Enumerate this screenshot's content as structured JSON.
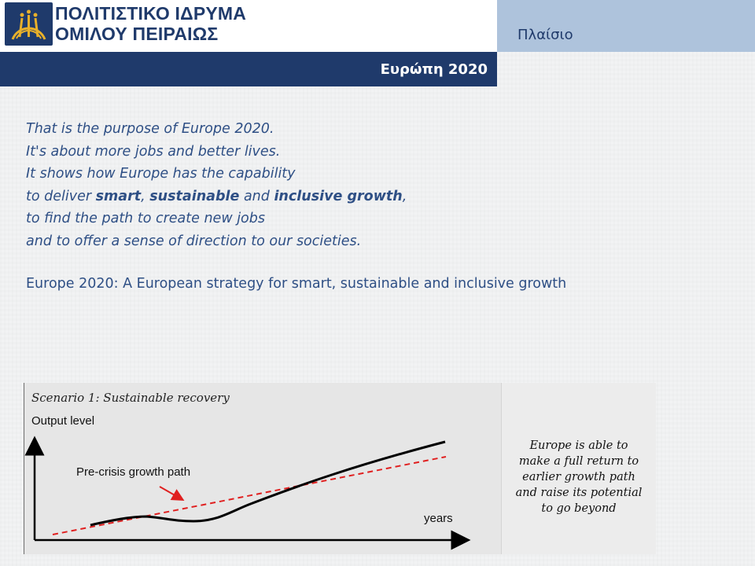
{
  "header": {
    "logo_line1": "ΠΟΛΙΤΙΣΤΙΚΟ ΙΔΡΥΜΑ",
    "logo_line2": "ΟΜΙΛΟΥ ΠΕΙΡΑΙΩΣ",
    "section_label": "Πλαίσιο",
    "title": "Ευρώπη 2020"
  },
  "colors": {
    "navy": "#1f3a6b",
    "light_blue": "#aec3dc",
    "text_blue": "#2e4f85",
    "trend_red": "#e02020"
  },
  "quote": {
    "line1": "That is the purpose of Europe 2020.",
    "line2": "It's about more jobs and better lives.",
    "line3": "It shows how Europe has the capability",
    "line4_pre": "to deliver ",
    "line4_b1": "smart",
    "line4_sep1": ",  ",
    "line4_b2": "sustainable",
    "line4_sep2": " and ",
    "line4_b3": "inclusive growth",
    "line4_post": ",",
    "line5": "to find the path to create new jobs",
    "line6": "and to offer a sense of direction to our societies."
  },
  "source": "Europe 2020:  A European strategy for smart, sustainable and inclusive growth",
  "diagram": {
    "title": "Scenario 1: Sustainable recovery",
    "y_label": "Output level",
    "x_label": "years",
    "trend_label": "Pre-crisis growth path",
    "side_note": [
      "Europe is able to",
      "make a full return to",
      "earlier growth path",
      "and raise its potential",
      "to go beyond"
    ]
  }
}
